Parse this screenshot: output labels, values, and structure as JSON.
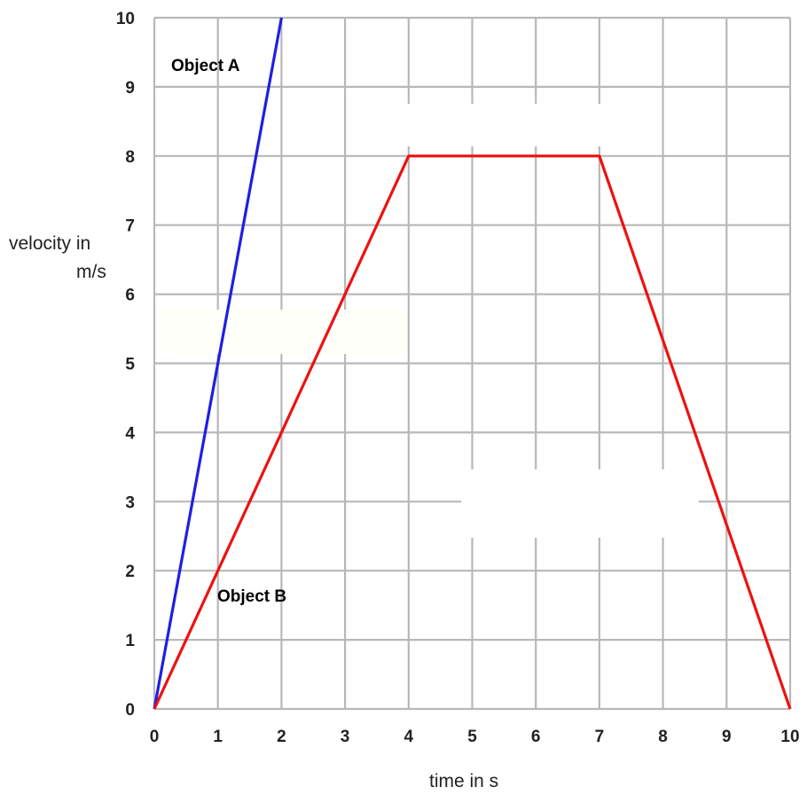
{
  "chart_data": {
    "type": "line",
    "title": "",
    "xlabel": "time in s",
    "ylabel": [
      "velocity in",
      "m/s"
    ],
    "xlim": [
      0,
      10
    ],
    "ylim": [
      0,
      10
    ],
    "x_ticks": [
      "0",
      "1",
      "2",
      "3",
      "4",
      "5",
      "6",
      "7",
      "8",
      "9",
      "10"
    ],
    "y_ticks": [
      "0",
      "1",
      "2",
      "3",
      "4",
      "5",
      "6",
      "7",
      "8",
      "9",
      "10"
    ],
    "grid": true,
    "series": [
      {
        "name": "Object A",
        "color": "#1f1fe0",
        "points": [
          [
            0,
            0
          ],
          [
            2,
            10
          ]
        ]
      },
      {
        "name": "Object B",
        "color": "#ee1111",
        "points": [
          [
            0,
            0
          ],
          [
            4,
            8
          ],
          [
            7,
            8
          ],
          [
            10,
            0
          ]
        ]
      }
    ]
  }
}
